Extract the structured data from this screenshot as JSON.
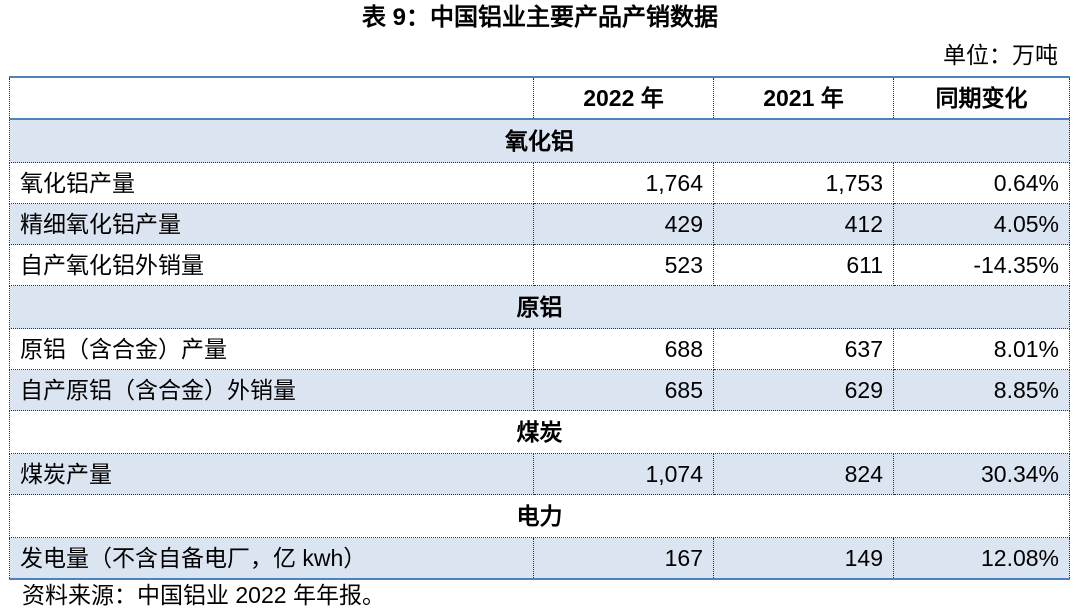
{
  "title": "表 9：中国铝业主要产品产销数据",
  "unit": "单位：万吨",
  "headers": [
    "",
    "2022 年",
    "2021 年",
    "同期变化"
  ],
  "sections": [
    {
      "name": "氧化铝",
      "rows": [
        [
          "氧化铝产量",
          "1,764",
          "1,753",
          "0.64%"
        ],
        [
          "精细氧化铝产量",
          "429",
          "412",
          "4.05%"
        ],
        [
          "自产氧化铝外销量",
          "523",
          "611",
          "-14.35%"
        ]
      ]
    },
    {
      "name": "原铝",
      "rows": [
        [
          "原铝（含合金）产量",
          "688",
          "637",
          "8.01%"
        ],
        [
          "自产原铝（含合金）外销量",
          "685",
          "629",
          "8.85%"
        ]
      ]
    },
    {
      "name": "煤炭",
      "rows": [
        [
          "煤炭产量",
          "1,074",
          "824",
          "30.34%"
        ]
      ]
    },
    {
      "name": "电力",
      "rows": [
        [
          "发电量（不含自备电厂，亿 kwh）",
          "167",
          "149",
          "12.08%"
        ]
      ]
    }
  ],
  "source": "资料来源：中国铝业 2022 年年报。",
  "colors": {
    "band": "#dbe5f1",
    "rule": "#4f81bd"
  }
}
